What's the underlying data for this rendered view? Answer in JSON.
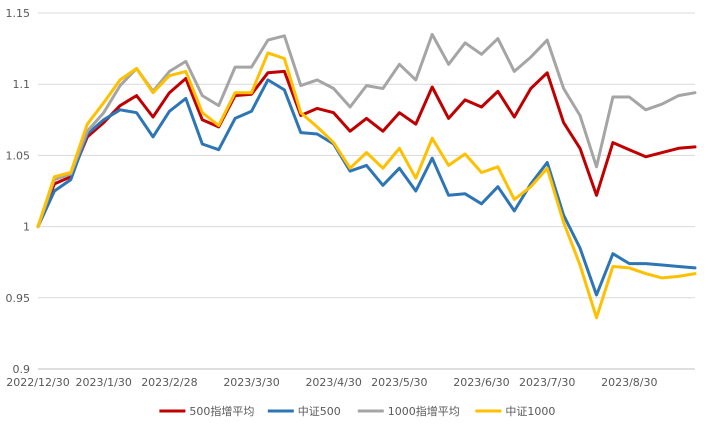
{
  "chart_data": {
    "type": "line",
    "title": "",
    "xlabel": "",
    "ylabel": "",
    "ylim": [
      0.9,
      1.15
    ],
    "yticks": [
      "0.9",
      "0.95",
      "1",
      "1.05",
      "1.1",
      "1.15"
    ],
    "grid": "horizontal",
    "legend_position": "bottom",
    "xtick_labels": [
      {
        "index": 0,
        "label": "2022/12/30"
      },
      {
        "index": 4,
        "label": "2023/1/30"
      },
      {
        "index": 8,
        "label": "2023/2/28"
      },
      {
        "index": 13,
        "label": "2023/3/30"
      },
      {
        "index": 18,
        "label": "2023/4/30"
      },
      {
        "index": 22,
        "label": "2023/5/30"
      },
      {
        "index": 27,
        "label": "2023/6/30"
      },
      {
        "index": 31,
        "label": "2023/7/30"
      },
      {
        "index": 36,
        "label": "2023/8/30"
      }
    ],
    "x_count": 41,
    "series": [
      {
        "name": "500指增平均",
        "color": "#c00000",
        "values": [
          1.0,
          1.03,
          1.035,
          1.063,
          1.073,
          1.085,
          1.092,
          1.077,
          1.094,
          1.104,
          1.075,
          1.07,
          1.092,
          1.093,
          1.108,
          1.109,
          1.078,
          1.083,
          1.08,
          1.067,
          1.076,
          1.067,
          1.08,
          1.072,
          1.098,
          1.076,
          1.089,
          1.084,
          1.095,
          1.077,
          1.097,
          1.108,
          1.073,
          1.055,
          1.022,
          1.059,
          1.054,
          1.049,
          1.052,
          1.055,
          1.056
        ]
      },
      {
        "name": "中证500",
        "color": "#2e75b6",
        "values": [
          1.0,
          1.025,
          1.033,
          1.065,
          1.075,
          1.082,
          1.08,
          1.063,
          1.081,
          1.09,
          1.058,
          1.054,
          1.076,
          1.081,
          1.103,
          1.096,
          1.066,
          1.065,
          1.058,
          1.039,
          1.043,
          1.029,
          1.041,
          1.025,
          1.048,
          1.022,
          1.023,
          1.016,
          1.028,
          1.011,
          1.03,
          1.045,
          1.008,
          0.985,
          0.952,
          0.981,
          0.974,
          0.974,
          0.973,
          0.972,
          0.971
        ]
      },
      {
        "name": "1000指增平均",
        "color": "#a5a5a5",
        "values": [
          1.0,
          1.033,
          1.037,
          1.067,
          1.08,
          1.099,
          1.111,
          1.095,
          1.109,
          1.116,
          1.092,
          1.085,
          1.112,
          1.112,
          1.131,
          1.134,
          1.099,
          1.103,
          1.097,
          1.084,
          1.099,
          1.097,
          1.114,
          1.103,
          1.135,
          1.114,
          1.129,
          1.121,
          1.132,
          1.109,
          1.119,
          1.131,
          1.097,
          1.078,
          1.042,
          1.091,
          1.091,
          1.082,
          1.086,
          1.092,
          1.094
        ]
      },
      {
        "name": "中证1000",
        "color": "#ffc000",
        "values": [
          1.0,
          1.035,
          1.038,
          1.072,
          1.087,
          1.103,
          1.111,
          1.094,
          1.106,
          1.109,
          1.08,
          1.071,
          1.094,
          1.094,
          1.122,
          1.118,
          1.08,
          1.07,
          1.059,
          1.041,
          1.052,
          1.041,
          1.055,
          1.034,
          1.062,
          1.043,
          1.051,
          1.038,
          1.042,
          1.019,
          1.028,
          1.041,
          1.003,
          0.973,
          0.936,
          0.972,
          0.971,
          0.967,
          0.964,
          0.965,
          0.967
        ]
      }
    ]
  }
}
